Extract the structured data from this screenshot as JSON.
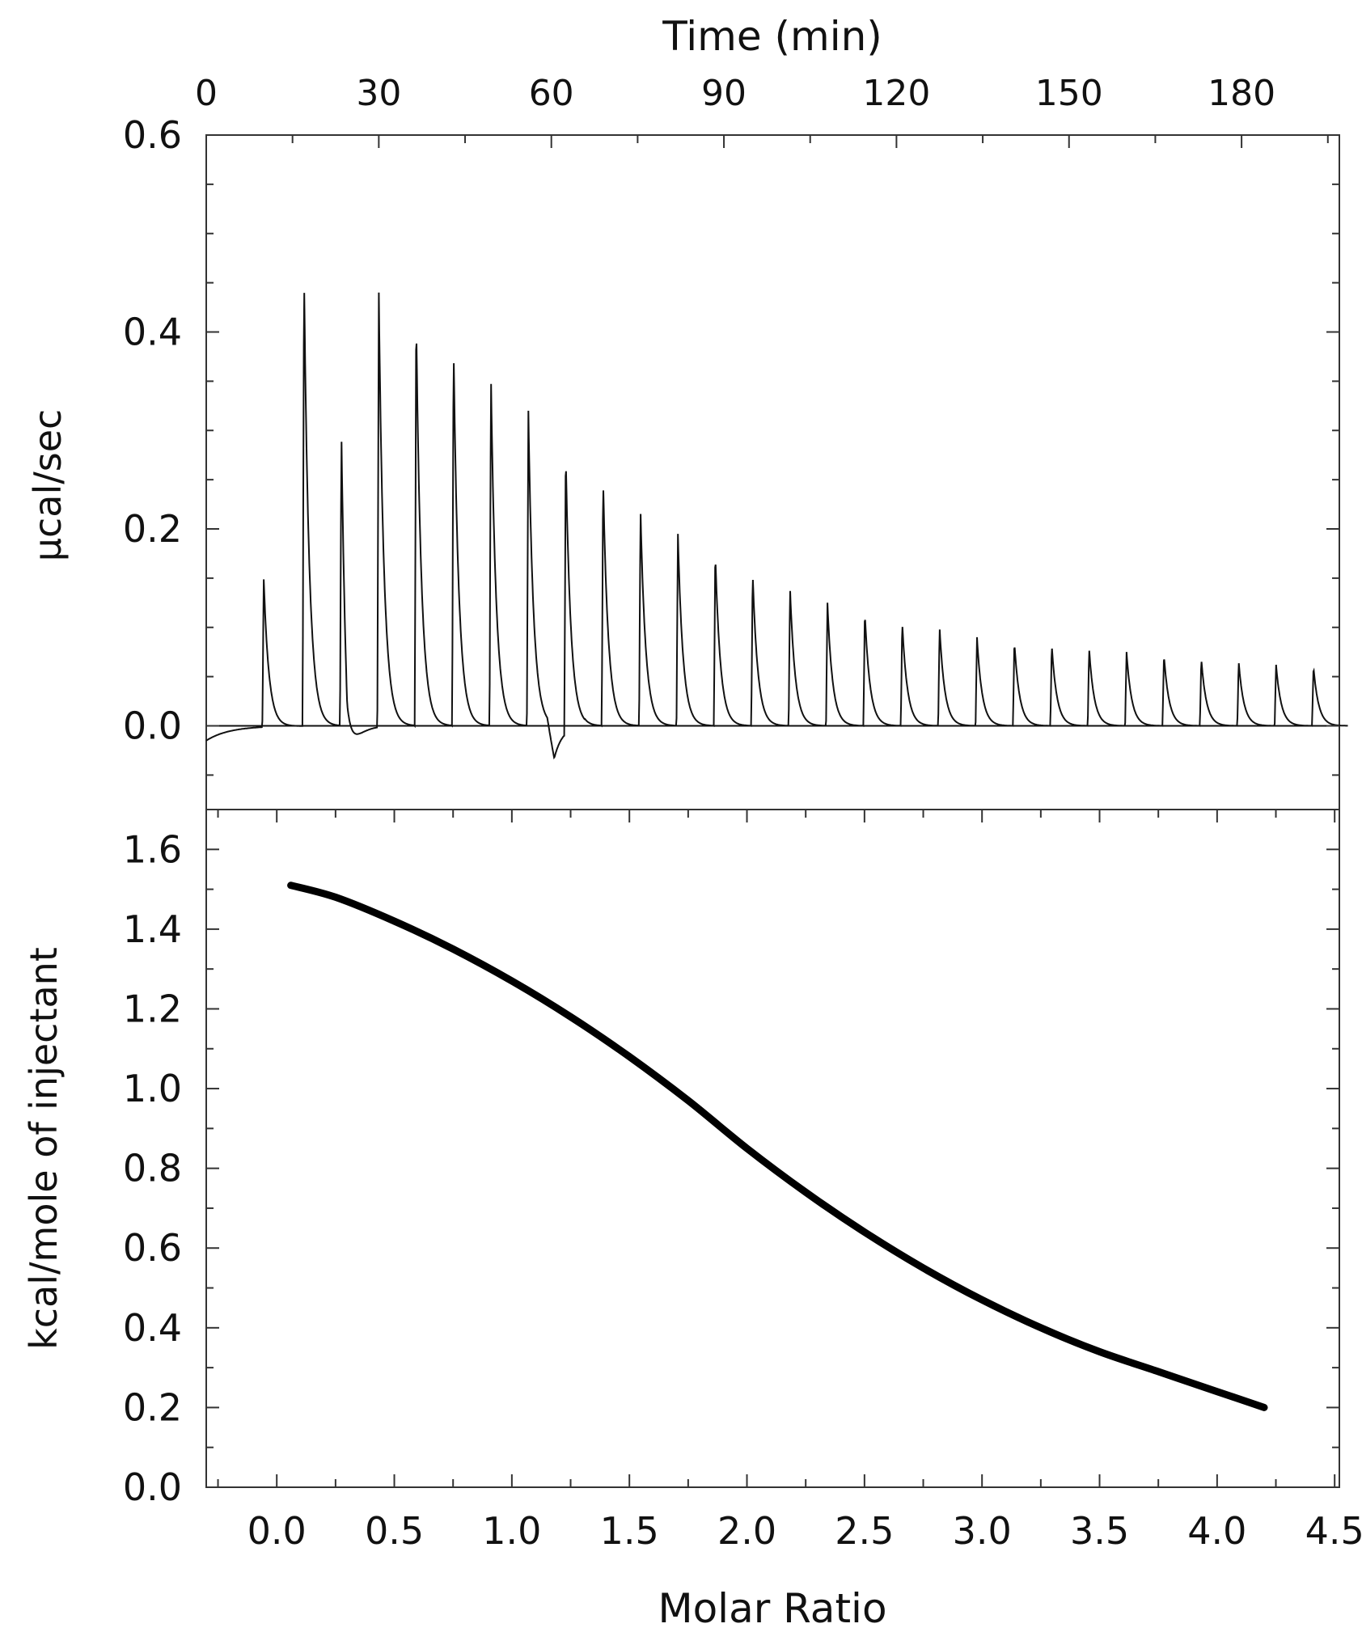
{
  "chart_data": [
    {
      "type": "line",
      "panel": "raw-thermogram",
      "title": "",
      "xlabel": "Time (min)",
      "xaxis_position": "top",
      "ylabel": "µcal/sec",
      "xlim": [
        0,
        197
      ],
      "ylim": [
        -0.085,
        0.6
      ],
      "xticks": [
        0,
        30,
        60,
        90,
        120,
        150,
        180
      ],
      "xtick_labels": [
        "0",
        "30",
        "60",
        "90",
        "120",
        "150",
        "180"
      ],
      "yticks": [
        0.0,
        0.2,
        0.4,
        0.6
      ],
      "ytick_labels": [
        "0.0",
        "0.2",
        "0.4",
        "0.6"
      ],
      "grid": false,
      "reference_line_y": 0.0,
      "baseline_start": -0.015,
      "series": [
        {
          "injection_times": [
            10,
            17,
            23.5,
            30,
            36.5,
            43,
            49.5,
            56,
            62.5,
            69,
            75.5,
            82,
            88.5,
            95,
            101.5,
            108,
            114.5,
            121,
            127.5,
            134,
            140.5,
            147,
            153.5,
            160,
            166.5,
            173,
            179.5,
            186,
            192.5
          ],
          "peak_values": [
            0.15,
            0.46,
            0.31,
            0.44,
            0.415,
            0.385,
            0.355,
            0.32,
            0.285,
            0.25,
            0.22,
            0.195,
            0.175,
            0.155,
            0.14,
            0.125,
            0.115,
            0.105,
            0.1,
            0.09,
            0.085,
            0.082,
            0.078,
            0.075,
            0.072,
            0.068,
            0.065,
            0.062,
            0.06
          ],
          "negative_dips": [
            {
              "time": 24.5,
              "min": -0.08
            },
            {
              "time": 60.5,
              "min": -0.035
            }
          ]
        }
      ]
    },
    {
      "type": "line",
      "panel": "binding-isotherm",
      "title": "",
      "xlabel": "Molar Ratio",
      "ylabel": "kcal/mole of injectant",
      "xlim": [
        -0.3,
        4.52
      ],
      "ylim": [
        0.0,
        1.7
      ],
      "xticks": [
        0.0,
        0.5,
        1.0,
        1.5,
        2.0,
        2.5,
        3.0,
        3.5,
        4.0,
        4.5
      ],
      "xtick_labels": [
        "0.0",
        "0.5",
        "1.0",
        "1.5",
        "2.0",
        "2.5",
        "3.0",
        "3.5",
        "4.0",
        "4.5"
      ],
      "yticks": [
        0.0,
        0.2,
        0.4,
        0.6,
        0.8,
        1.0,
        1.2,
        1.4,
        1.6
      ],
      "ytick_labels": [
        "0.0",
        "0.2",
        "0.4",
        "0.6",
        "0.8",
        "1.0",
        "1.2",
        "1.4",
        "1.6"
      ],
      "grid": false,
      "series": [
        {
          "x": [
            0.06,
            0.25,
            0.5,
            0.75,
            1.0,
            1.25,
            1.5,
            1.75,
            2.0,
            2.25,
            2.5,
            2.75,
            3.0,
            3.25,
            3.5,
            3.75,
            4.0,
            4.2
          ],
          "y": [
            1.51,
            1.48,
            1.42,
            1.35,
            1.27,
            1.18,
            1.08,
            0.97,
            0.85,
            0.74,
            0.64,
            0.55,
            0.47,
            0.4,
            0.34,
            0.29,
            0.24,
            0.2
          ]
        }
      ]
    }
  ]
}
